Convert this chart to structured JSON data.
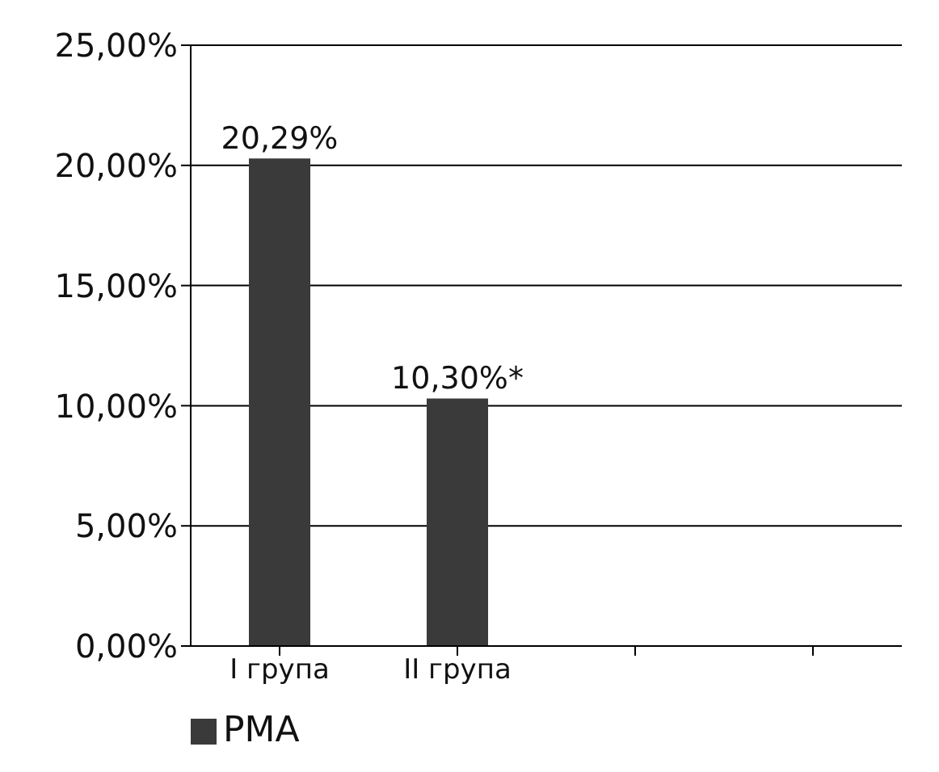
{
  "chart_data": {
    "type": "bar",
    "categories": [
      "I група",
      "II група",
      null,
      null
    ],
    "series": [
      {
        "name": "РМА",
        "color": "#3a3a3a",
        "values": [
          20.29,
          10.3,
          null,
          null
        ],
        "value_labels": [
          "20,29%",
          "10,30%*",
          null,
          null
        ]
      }
    ],
    "ylim": [
      0,
      25
    ],
    "yticks": [
      {
        "value": 0,
        "label": "0,00%"
      },
      {
        "value": 5,
        "label": "5,00%"
      },
      {
        "value": 10,
        "label": "10,00%"
      },
      {
        "value": 15,
        "label": "15,00%"
      },
      {
        "value": 20,
        "label": "20,00%"
      },
      {
        "value": 25,
        "label": "25,00%"
      }
    ],
    "grid": "y",
    "legend": "bottom left"
  }
}
